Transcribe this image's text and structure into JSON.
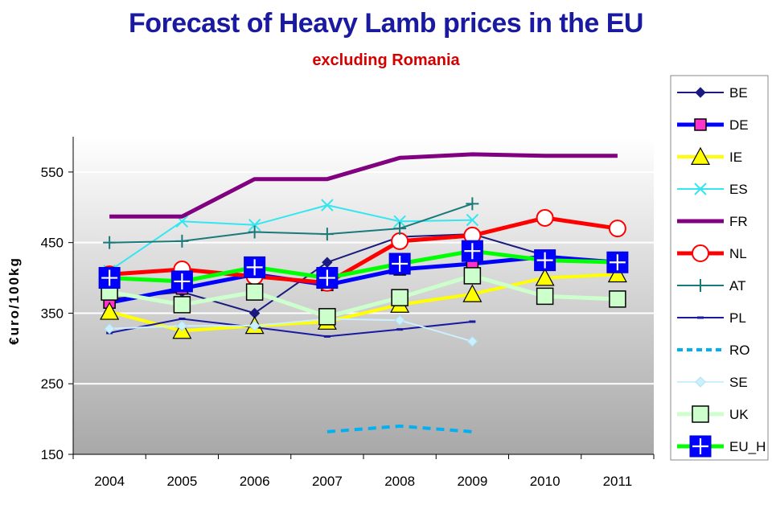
{
  "chart_data": {
    "type": "line",
    "title": "Forecast of Heavy Lamb prices in the EU",
    "subtitle": "excluding Romania",
    "ylabel": "€uro/100kg",
    "xlabel": "",
    "ylim": [
      150,
      600
    ],
    "yticks": [
      150,
      250,
      350,
      450,
      550
    ],
    "categories": [
      "2004",
      "2005",
      "2006",
      "2007",
      "2008",
      "2009",
      "2010",
      "2011"
    ],
    "legend_position": "right",
    "series": [
      {
        "name": "BE",
        "color": "#1a1a80",
        "marker": "diamond",
        "values": [
          370,
          380,
          350,
          422,
          458,
          462,
          432,
          422
        ]
      },
      {
        "name": "DE",
        "color": "#0000ff",
        "marker": "square",
        "values": [
          365,
          385,
          405,
          390,
          412,
          420,
          430,
          422
        ]
      },
      {
        "name": "IE",
        "color": "#ffff00",
        "marker": "triangle",
        "values": [
          352,
          325,
          332,
          338,
          362,
          377,
          400,
          405
        ]
      },
      {
        "name": "ES",
        "color": "#33e6f0",
        "marker": "x",
        "values": [
          410,
          480,
          475,
          503,
          480,
          482,
          null,
          null
        ]
      },
      {
        "name": "FR",
        "color": "#800080",
        "marker": "none",
        "values": [
          487,
          487,
          540,
          540,
          570,
          575,
          573,
          573
        ]
      },
      {
        "name": "NL",
        "color": "#ff0000",
        "marker": "circle",
        "values": [
          405,
          412,
          402,
          393,
          452,
          460,
          485,
          470
        ]
      },
      {
        "name": "AT",
        "color": "#1a7a7a",
        "marker": "plus",
        "values": [
          450,
          452,
          465,
          462,
          470,
          505,
          null,
          null
        ]
      },
      {
        "name": "PL",
        "color": "#1a1aa0",
        "marker": "dash",
        "values": [
          322,
          342,
          330,
          317,
          327,
          338,
          null,
          null
        ]
      },
      {
        "name": "RO",
        "color": "#00b0f0",
        "marker": "dash",
        "values": [
          null,
          null,
          null,
          182,
          190,
          182,
          null,
          null
        ]
      },
      {
        "name": "SE",
        "color": "#ccf0ff",
        "marker": "diamond",
        "values": [
          328,
          332,
          332,
          342,
          340,
          310,
          null,
          null
        ]
      },
      {
        "name": "UK",
        "color": "#ccffcc",
        "marker": "square",
        "values": [
          380,
          362,
          380,
          345,
          372,
          403,
          374,
          370
        ]
      },
      {
        "name": "EU_H",
        "color": "#00ff00",
        "marker": "squareplus",
        "values": [
          400,
          395,
          415,
          400,
          420,
          438,
          425,
          422
        ]
      }
    ]
  }
}
